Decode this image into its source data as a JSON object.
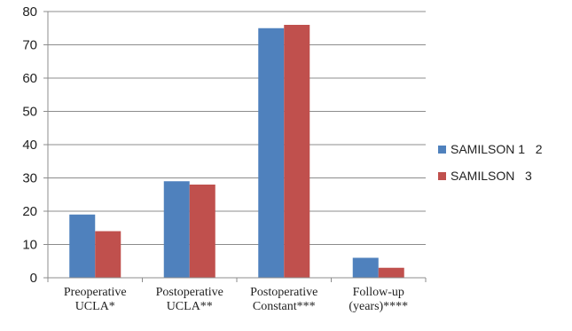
{
  "chart_data": {
    "type": "bar",
    "categories": [
      [
        "Preoperative",
        "UCLA*"
      ],
      [
        "Postoperative",
        "UCLA**"
      ],
      [
        "Postoperative",
        "Constant***"
      ],
      [
        "Follow-up",
        "(years)****"
      ]
    ],
    "series": [
      {
        "name": "SAMILSON 1   2",
        "color": "#4f81bd",
        "values": [
          19,
          29,
          75,
          6
        ]
      },
      {
        "name": "SAMILSON   3",
        "color": "#c0504d",
        "values": [
          14,
          28,
          76,
          3
        ]
      }
    ],
    "ylim": [
      0,
      80
    ],
    "yticks": [
      0,
      10,
      20,
      30,
      40,
      50,
      60,
      70,
      80
    ],
    "grid": true,
    "legend": "right"
  }
}
